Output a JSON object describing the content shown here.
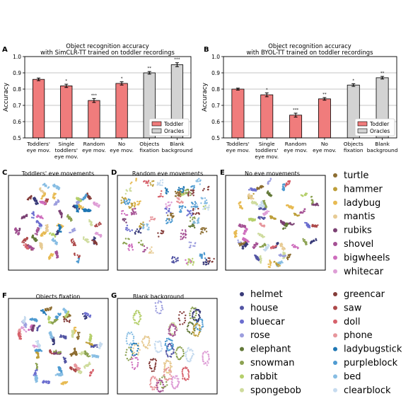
{
  "bar_charts": {
    "y_ticks": [
      "0.5",
      "0.6",
      "0.7",
      "0.8",
      "0.9",
      "1.0"
    ]
  },
  "chart_data": [
    {
      "panel": "A",
      "type": "bar",
      "title": "Object recognition accuracy",
      "subtitle": "with SimCLR-TT trained on toddler recordings",
      "ylabel": "Accuracy",
      "ylim": [
        0.5,
        1.0
      ],
      "grid": true,
      "legend_placement": "bottom-right",
      "categories": [
        "Toddlers' eye mov.",
        "Single toddlers' eye mov.",
        "Random eye mov.",
        "No eye mov.",
        "Objects fixation",
        "Blank background"
      ],
      "category_lines": [
        [
          "Toddlers'",
          "eye mov."
        ],
        [
          "Single",
          "toddlers'",
          "eye mov."
        ],
        [
          "Random",
          "eye mov."
        ],
        [
          "No",
          "eye mov."
        ],
        [
          "Objects",
          "fixation"
        ],
        [
          "Blank",
          "background"
        ]
      ],
      "values": [
        0.86,
        0.82,
        0.73,
        0.835,
        0.9,
        0.95
      ],
      "errors": [
        0.008,
        0.01,
        0.012,
        0.01,
        0.008,
        0.012
      ],
      "groups": [
        "Toddler",
        "Toddler",
        "Toddler",
        "Toddler",
        "Oracles",
        "Oracles"
      ],
      "significance": [
        "",
        "*",
        "***",
        "*",
        "**",
        "***"
      ],
      "legend": [
        "Toddler",
        "Oracles"
      ],
      "colors": {
        "Toddler": "#f07c7c",
        "Oracles": "#d3d3d3"
      }
    },
    {
      "panel": "B",
      "type": "bar",
      "title": "Object recognition accuracy",
      "subtitle": "with BYOL-TT trained on toddler recordings",
      "ylabel": "Accuracy",
      "ylim": [
        0.5,
        1.0
      ],
      "grid": true,
      "legend_placement": "bottom-right",
      "categories": [
        "Toddlers' eye mov.",
        "Single toddlers' eye mov.",
        "Random eye mov.",
        "No eye mov.",
        "Objects fixation",
        "Blank background"
      ],
      "category_lines": [
        [
          "Toddlers'",
          "eye mov."
        ],
        [
          "Single",
          "toddlers'",
          "eye mov."
        ],
        [
          "Random",
          "eye mov."
        ],
        [
          "No",
          "eye mov."
        ],
        [
          "Objects",
          "fixation"
        ],
        [
          "Blank",
          "background"
        ]
      ],
      "values": [
        0.8,
        0.765,
        0.64,
        0.74,
        0.825,
        0.87
      ],
      "errors": [
        0.006,
        0.012,
        0.012,
        0.008,
        0.008,
        0.008
      ],
      "groups": [
        "Toddler",
        "Toddler",
        "Toddler",
        "Toddler",
        "Oracles",
        "Oracles"
      ],
      "significance": [
        "",
        "*",
        "***",
        "**",
        "*",
        "**"
      ],
      "legend": [
        "Toddler",
        "Oracles"
      ],
      "colors": {
        "Toddler": "#f07c7c",
        "Oracles": "#d3d3d3"
      }
    },
    {
      "panels": [
        {
          "letter": "C",
          "title": "Toddlers' eye movements"
        },
        {
          "letter": "D",
          "title": "Random eye movements"
        },
        {
          "letter": "E",
          "title": "No eye movements"
        },
        {
          "letter": "F",
          "title": "Objects fixation"
        },
        {
          "letter": "G",
          "title": "Blank background"
        }
      ],
      "type": "scatter",
      "classes": [
        {
          "name": "helmet",
          "color": "#393b79"
        },
        {
          "name": "house",
          "color": "#5254a3"
        },
        {
          "name": "bluecar",
          "color": "#6b6ecf"
        },
        {
          "name": "rose",
          "color": "#9c9ede"
        },
        {
          "name": "elephant",
          "color": "#637939"
        },
        {
          "name": "snowman",
          "color": "#8ca252"
        },
        {
          "name": "rabbit",
          "color": "#b5cf6b"
        },
        {
          "name": "spongebob",
          "color": "#cedb9c"
        },
        {
          "name": "turtle",
          "color": "#8c6d31"
        },
        {
          "name": "hammer",
          "color": "#bd9e39"
        },
        {
          "name": "ladybug",
          "color": "#e7ba52"
        },
        {
          "name": "mantis",
          "color": "#e7cb94"
        },
        {
          "name": "rubiks",
          "color": "#7b4173"
        },
        {
          "name": "shovel",
          "color": "#a55194"
        },
        {
          "name": "bigwheels",
          "color": "#ce6dbd"
        },
        {
          "name": "whitecar",
          "color": "#de9ed6"
        },
        {
          "name": "greencar",
          "color": "#843c39"
        },
        {
          "name": "saw",
          "color": "#ad494a"
        },
        {
          "name": "doll",
          "color": "#d6616b"
        },
        {
          "name": "phone",
          "color": "#e7969c"
        },
        {
          "name": "ladybugstick",
          "color": "#1f77b4"
        },
        {
          "name": "purpleblock",
          "color": "#4f9bd1"
        },
        {
          "name": "bed",
          "color": "#87bde3"
        },
        {
          "name": "clearblock",
          "color": "#c6dbef"
        }
      ]
    }
  ]
}
